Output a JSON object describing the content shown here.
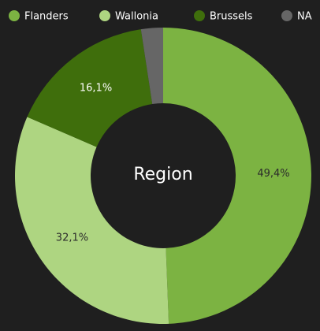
{
  "chart_data": {
    "type": "donut",
    "center_label": "Region",
    "categories": [
      "Flanders",
      "Wallonia",
      "Brussels",
      "NA"
    ],
    "values": [
      49.4,
      32.1,
      16.1,
      2.4
    ],
    "value_labels": [
      "49,4%",
      "32,1%",
      "16,1%",
      null
    ],
    "colors": [
      "#7cb342",
      "#aed581",
      "#3f6e0c",
      "#666666"
    ],
    "legend": "top"
  }
}
